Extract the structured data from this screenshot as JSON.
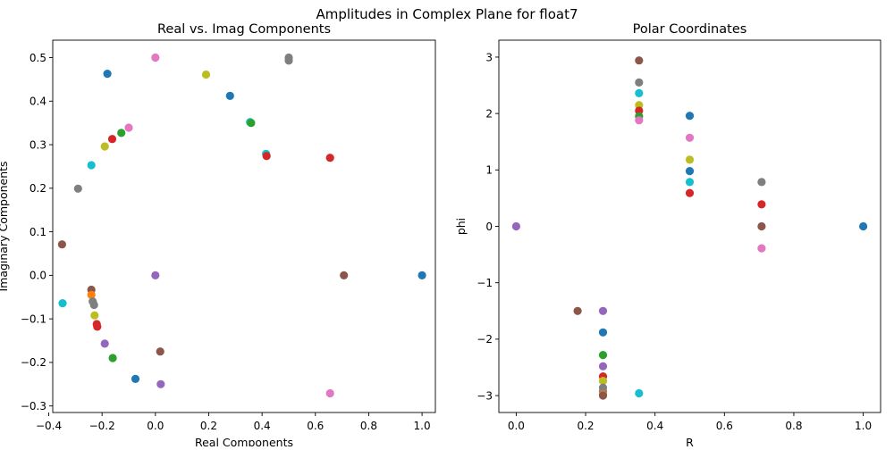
{
  "figure": {
    "suptitle": "Amplitudes in Complex Plane for float7"
  },
  "palette": {
    "blue": "#1f77b4",
    "orange": "#ff7f0e",
    "green": "#2ca02c",
    "red": "#d62728",
    "purple": "#9467bd",
    "brown": "#8c564b",
    "pink": "#e377c2",
    "gray": "#7f7f7f",
    "olive": "#bcbd22",
    "cyan": "#17becf"
  },
  "chart_data": [
    {
      "type": "scatter",
      "title": "Real vs. Imag Components",
      "xlabel": "Real Components",
      "ylabel": "Imaginary Components",
      "xlim": [
        -0.385,
        1.05
      ],
      "ylim": [
        -0.315,
        0.54
      ],
      "xticks": [
        -0.4,
        -0.2,
        0.0,
        0.2,
        0.4,
        0.6,
        0.8,
        1.0
      ],
      "xtick_labels": [
        "−0.4",
        "−0.2",
        "0.0",
        "0.2",
        "0.4",
        "0.6",
        "0.8",
        "1.0"
      ],
      "yticks": [
        -0.3,
        -0.2,
        -0.1,
        0.0,
        0.1,
        0.2,
        0.3,
        0.4,
        0.5
      ],
      "ytick_labels": [
        "−0.3",
        "−0.2",
        "−0.1",
        "0.0",
        "0.1",
        "0.2",
        "0.3",
        "0.4",
        "0.5"
      ],
      "grid": false,
      "points": [
        {
          "x": -0.18,
          "y": 0.463,
          "color": "blue"
        },
        {
          "x": 0.0,
          "y": 0.5,
          "color": "pink"
        },
        {
          "x": 0.19,
          "y": 0.461,
          "color": "olive"
        },
        {
          "x": 0.5,
          "y": 0.5,
          "color": "gray"
        },
        {
          "x": 0.5,
          "y": 0.493,
          "color": "gray"
        },
        {
          "x": 0.28,
          "y": 0.412,
          "color": "blue"
        },
        {
          "x": 0.355,
          "y": 0.352,
          "color": "cyan"
        },
        {
          "x": 0.359,
          "y": 0.35,
          "color": "green"
        },
        {
          "x": -0.1,
          "y": 0.339,
          "color": "pink"
        },
        {
          "x": -0.128,
          "y": 0.327,
          "color": "green"
        },
        {
          "x": -0.162,
          "y": 0.313,
          "color": "red"
        },
        {
          "x": -0.19,
          "y": 0.296,
          "color": "olive"
        },
        {
          "x": 0.415,
          "y": 0.279,
          "color": "cyan"
        },
        {
          "x": 0.417,
          "y": 0.274,
          "color": "red"
        },
        {
          "x": 0.655,
          "y": 0.27,
          "color": "red"
        },
        {
          "x": -0.24,
          "y": 0.253,
          "color": "cyan"
        },
        {
          "x": -0.29,
          "y": 0.199,
          "color": "gray"
        },
        {
          "x": -0.35,
          "y": 0.071,
          "color": "brown"
        },
        {
          "x": 0.0,
          "y": 0.0,
          "color": "purple"
        },
        {
          "x": 0.707,
          "y": 0.0,
          "color": "brown"
        },
        {
          "x": 1.0,
          "y": 0.0,
          "color": "blue"
        },
        {
          "x": -0.24,
          "y": -0.033,
          "color": "brown"
        },
        {
          "x": -0.24,
          "y": -0.045,
          "color": "orange"
        },
        {
          "x": -0.235,
          "y": -0.06,
          "color": "gray"
        },
        {
          "x": -0.23,
          "y": -0.068,
          "color": "gray"
        },
        {
          "x": -0.348,
          "y": -0.064,
          "color": "cyan"
        },
        {
          "x": -0.228,
          "y": -0.092,
          "color": "olive"
        },
        {
          "x": -0.22,
          "y": -0.112,
          "color": "red"
        },
        {
          "x": -0.218,
          "y": -0.118,
          "color": "red"
        },
        {
          "x": -0.19,
          "y": -0.157,
          "color": "purple"
        },
        {
          "x": -0.16,
          "y": -0.19,
          "color": "green"
        },
        {
          "x": 0.018,
          "y": -0.175,
          "color": "brown"
        },
        {
          "x": -0.075,
          "y": -0.238,
          "color": "blue"
        },
        {
          "x": 0.02,
          "y": -0.25,
          "color": "purple"
        },
        {
          "x": 0.655,
          "y": -0.271,
          "color": "pink"
        }
      ]
    },
    {
      "type": "scatter",
      "title": "Polar Coordinates",
      "xlabel": "R",
      "ylabel": "phi",
      "xlim": [
        -0.05,
        1.05
      ],
      "ylim": [
        -3.3,
        3.3
      ],
      "xticks": [
        0.0,
        0.2,
        0.4,
        0.6,
        0.8,
        1.0
      ],
      "xtick_labels": [
        "0.0",
        "0.2",
        "0.4",
        "0.6",
        "0.8",
        "1.0"
      ],
      "yticks": [
        -3,
        -2,
        -1,
        0,
        1,
        2,
        3
      ],
      "ytick_labels": [
        "−3",
        "−2",
        "−1",
        "0",
        "1",
        "2",
        "3"
      ],
      "grid": false,
      "points": [
        {
          "x": 0.0,
          "y": 0.0,
          "color": "purple"
        },
        {
          "x": 0.177,
          "y": -1.5,
          "color": "brown"
        },
        {
          "x": 0.25,
          "y": -1.5,
          "color": "purple"
        },
        {
          "x": 0.25,
          "y": -1.88,
          "color": "blue"
        },
        {
          "x": 0.25,
          "y": -2.28,
          "color": "green"
        },
        {
          "x": 0.25,
          "y": -2.48,
          "color": "purple"
        },
        {
          "x": 0.25,
          "y": -2.66,
          "color": "red"
        },
        {
          "x": 0.25,
          "y": -2.74,
          "color": "olive"
        },
        {
          "x": 0.25,
          "y": -2.86,
          "color": "gray"
        },
        {
          "x": 0.25,
          "y": -2.93,
          "color": "gray"
        },
        {
          "x": 0.25,
          "y": -2.98,
          "color": "orange"
        },
        {
          "x": 0.25,
          "y": -3.0,
          "color": "brown"
        },
        {
          "x": 0.354,
          "y": -2.96,
          "color": "cyan"
        },
        {
          "x": 0.354,
          "y": 2.94,
          "color": "brown"
        },
        {
          "x": 0.354,
          "y": 2.55,
          "color": "gray"
        },
        {
          "x": 0.354,
          "y": 2.36,
          "color": "cyan"
        },
        {
          "x": 0.354,
          "y": 2.15,
          "color": "olive"
        },
        {
          "x": 0.354,
          "y": 2.05,
          "color": "red"
        },
        {
          "x": 0.354,
          "y": 1.95,
          "color": "green"
        },
        {
          "x": 0.354,
          "y": 1.88,
          "color": "pink"
        },
        {
          "x": 0.5,
          "y": 1.96,
          "color": "blue"
        },
        {
          "x": 0.5,
          "y": 1.57,
          "color": "pink"
        },
        {
          "x": 0.5,
          "y": 1.18,
          "color": "olive"
        },
        {
          "x": 0.5,
          "y": 0.98,
          "color": "blue"
        },
        {
          "x": 0.5,
          "y": 0.785,
          "color": "cyan"
        },
        {
          "x": 0.5,
          "y": 0.59,
          "color": "red"
        },
        {
          "x": 0.707,
          "y": 0.785,
          "color": "gray"
        },
        {
          "x": 0.707,
          "y": 0.39,
          "color": "red"
        },
        {
          "x": 0.707,
          "y": 0.0,
          "color": "brown"
        },
        {
          "x": 0.707,
          "y": -0.39,
          "color": "pink"
        },
        {
          "x": 1.0,
          "y": 0.0,
          "color": "blue"
        }
      ]
    }
  ]
}
